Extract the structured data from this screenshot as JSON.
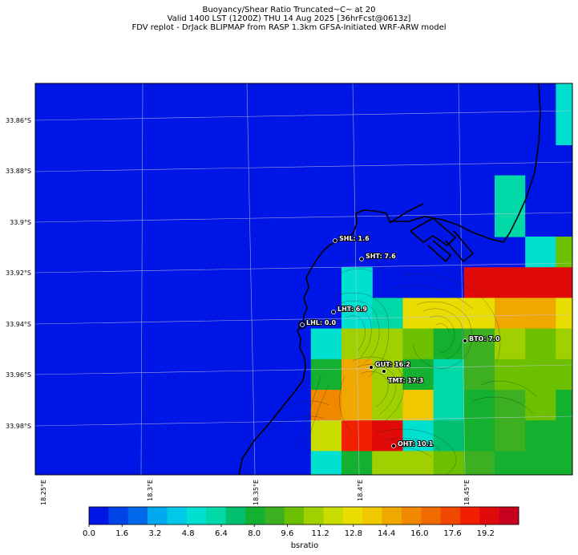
{
  "header": {
    "line1": "Buoyancy/Shear Ratio Truncated~C~    at 20",
    "line2": "Valid 1400 LST (1200Z) THU 14 Aug 2025 [36hrFcst@0613z]",
    "line3": "FDV replot - DrJack BLIPMAP from RASP 1.3km GFSA-Initiated WRF-ARW model"
  },
  "axes": {
    "lat_ticks": [
      "33.86°S",
      "33.88°S",
      "33.9°S",
      "33.92°S",
      "33.94°S",
      "33.96°S",
      "33.98°S"
    ],
    "lon_ticks": [
      "18.25°E",
      "18.3°E",
      "18.35°E",
      "18.4°E",
      "18.45°E"
    ]
  },
  "colorbar": {
    "label": "bsratio",
    "tick_labels": [
      "0.0",
      "1.6",
      "3.2",
      "4.8",
      "6.4",
      "8.0",
      "9.6",
      "11.2",
      "12.8",
      "14.4",
      "16.0",
      "17.6",
      "19.2"
    ],
    "colors": [
      "#0016e6",
      "#0044e8",
      "#0068ea",
      "#00a8ee",
      "#00c8e8",
      "#00e0d0",
      "#00d8a8",
      "#00c070",
      "#14b030",
      "#3cb020",
      "#6cc000",
      "#a0d000",
      "#c8dc00",
      "#e8dc00",
      "#f0c800",
      "#f0a800",
      "#f08800",
      "#f06c00",
      "#f04800",
      "#f02000",
      "#e00a0a",
      "#c80020"
    ]
  },
  "sites": [
    {
      "code": "SHL",
      "value": "1.6"
    },
    {
      "code": "SHT",
      "value": "7.6"
    },
    {
      "code": "LHT",
      "value": "6.9"
    },
    {
      "code": "LHL",
      "value": "0.0"
    },
    {
      "code": "BTO",
      "value": "7.0"
    },
    {
      "code": "GUT",
      "value": "16.2"
    },
    {
      "code": "TMT",
      "value": "17.3"
    },
    {
      "code": "OHT",
      "value": "10.1"
    }
  ],
  "map_values": {
    "background": 0.0,
    "cells": [
      [
        17,
        2,
        0.9
      ],
      [
        17,
        1,
        4.8
      ],
      [
        17,
        0,
        4.8
      ],
      [
        15,
        3,
        5.8
      ],
      [
        15,
        4,
        6.4
      ],
      [
        16,
        3,
        0.0
      ],
      [
        16,
        4,
        0.0
      ],
      [
        16,
        5,
        4.8
      ],
      [
        17,
        5,
        9.6
      ],
      [
        14,
        6,
        19.2
      ],
      [
        15,
        6,
        19.2
      ],
      [
        16,
        6,
        19.2
      ],
      [
        17,
        6,
        19.2
      ],
      [
        10,
        7,
        4.8
      ],
      [
        11,
        7,
        6.4
      ],
      [
        12,
        7,
        12.8
      ],
      [
        13,
        7,
        12.8
      ],
      [
        14,
        7,
        12.8
      ],
      [
        15,
        7,
        14.4
      ],
      [
        16,
        7,
        14.4
      ],
      [
        17,
        7,
        12.8
      ],
      [
        9,
        8,
        5.6
      ],
      [
        10,
        8,
        10.4
      ],
      [
        11,
        8,
        11.2
      ],
      [
        12,
        8,
        9.6
      ],
      [
        13,
        8,
        8.0
      ],
      [
        14,
        8,
        8.8
      ],
      [
        15,
        8,
        10.4
      ],
      [
        16,
        8,
        9.6
      ],
      [
        17,
        8,
        11.2
      ],
      [
        9,
        9,
        8.0
      ],
      [
        10,
        9,
        14.4
      ],
      [
        11,
        9,
        10.4
      ],
      [
        12,
        9,
        8.0
      ],
      [
        13,
        9,
        6.4
      ],
      [
        14,
        9,
        8.8
      ],
      [
        15,
        9,
        9.6
      ],
      [
        16,
        9,
        9.6
      ],
      [
        17,
        9,
        9.6
      ],
      [
        9,
        10,
        15.2
      ],
      [
        10,
        10,
        14.4
      ],
      [
        11,
        10,
        11.2
      ],
      [
        12,
        10,
        13.6
      ],
      [
        13,
        10,
        6.4
      ],
      [
        14,
        10,
        8.0
      ],
      [
        15,
        10,
        8.8
      ],
      [
        16,
        10,
        9.6
      ],
      [
        17,
        10,
        8.0
      ],
      [
        9,
        11,
        12.0
      ],
      [
        10,
        11,
        18.4
      ],
      [
        11,
        11,
        19.2
      ],
      [
        12,
        11,
        5.6
      ],
      [
        13,
        11,
        7.2
      ],
      [
        14,
        11,
        8.0
      ],
      [
        15,
        11,
        8.8
      ],
      [
        16,
        11,
        8.0
      ],
      [
        17,
        11,
        8.0
      ],
      [
        9,
        12,
        5.6
      ],
      [
        10,
        12,
        8.0
      ],
      [
        11,
        12,
        11.2
      ],
      [
        12,
        12,
        10.4
      ],
      [
        13,
        12,
        9.6
      ],
      [
        14,
        12,
        8.8
      ],
      [
        15,
        12,
        8.0
      ],
      [
        16,
        12,
        8.0
      ],
      [
        17,
        12,
        8.0
      ],
      [
        8,
        13,
        4.8
      ],
      [
        9,
        13,
        4.8
      ],
      [
        10,
        13,
        9.6
      ],
      [
        11,
        13,
        10.4
      ],
      [
        12,
        13,
        12.8
      ],
      [
        13,
        13,
        11.2
      ],
      [
        14,
        13,
        8.8
      ],
      [
        15,
        13,
        8.0
      ],
      [
        16,
        13,
        8.0
      ],
      [
        17,
        13,
        7.2
      ],
      [
        7,
        14,
        3.2
      ],
      [
        8,
        14,
        4.8
      ],
      [
        9,
        14,
        8.0
      ],
      [
        10,
        14,
        10.4
      ],
      [
        11,
        14,
        9.6
      ],
      [
        12,
        14,
        12.0
      ],
      [
        13,
        14,
        10.4
      ],
      [
        14,
        14,
        8.8
      ],
      [
        15,
        14,
        8.0
      ],
      [
        16,
        14,
        4.8
      ],
      [
        17,
        14,
        6.4
      ],
      [
        10,
        6,
        4.8
      ]
    ]
  }
}
